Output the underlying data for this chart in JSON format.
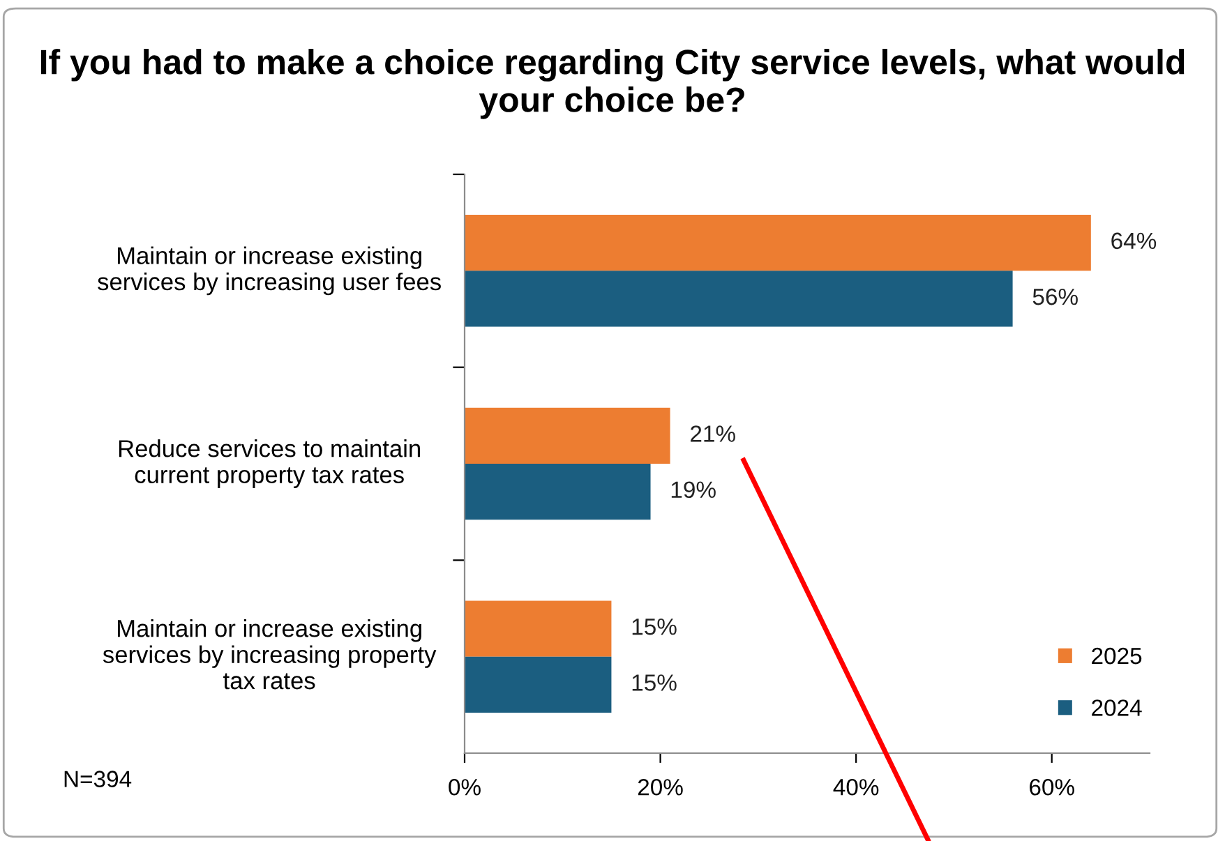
{
  "chart_data": {
    "type": "bar",
    "orientation": "horizontal",
    "title": "If you had to make a choice regarding City service levels, what would your choice be?",
    "categories": [
      "Maintain or increase existing\nservices by increasing user fees",
      "Reduce services to maintain\ncurrent property tax rates",
      "Maintain or increase existing\nservices by increasing property\ntax rates"
    ],
    "series": [
      {
        "name": "2025",
        "color": "#ed7d31",
        "values": [
          64,
          21,
          15
        ],
        "value_labels": [
          "64%",
          "21%",
          "15%"
        ]
      },
      {
        "name": "2024",
        "color": "#1b5e80",
        "values": [
          56,
          19,
          15
        ],
        "value_labels": [
          "56%",
          "19%",
          "15%"
        ]
      }
    ],
    "xlim": [
      0,
      70
    ],
    "xticks": [
      {
        "value": 0,
        "label": "0%"
      },
      {
        "value": 20,
        "label": "20%"
      },
      {
        "value": 40,
        "label": "40%"
      },
      {
        "value": 60,
        "label": "60%"
      }
    ],
    "grid": false,
    "legend": "bottom right",
    "annotations": [
      "N=394"
    ]
  }
}
